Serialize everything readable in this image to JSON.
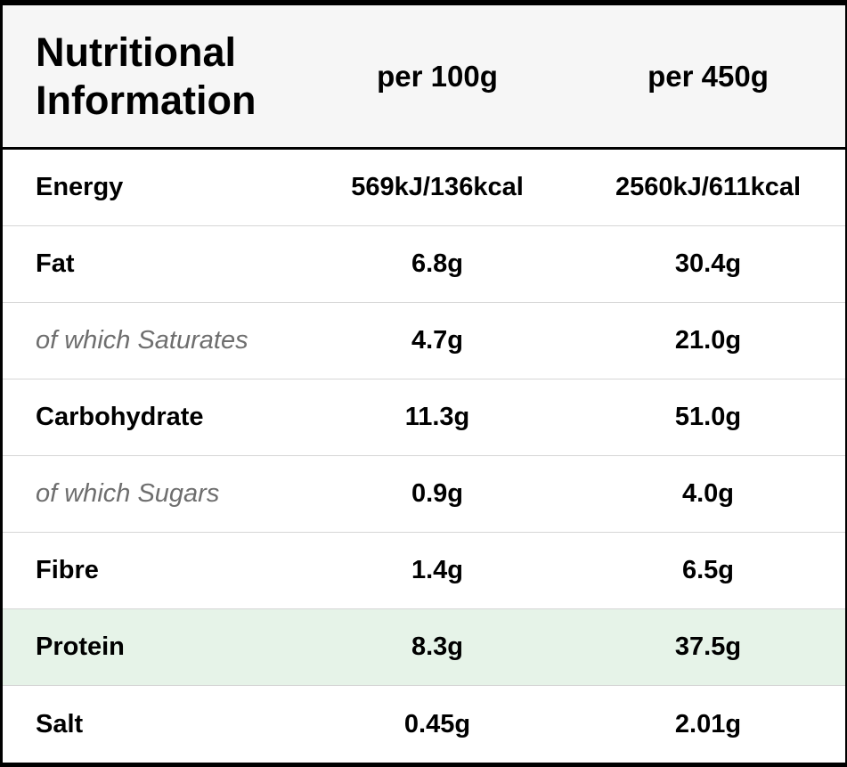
{
  "table": {
    "title_line1": "Nutritional",
    "title_line2": "Information",
    "col_1_header": "per 100g",
    "col_2_header": "per 450g",
    "highlight_color": "#e6f3e8",
    "rows": [
      {
        "label": "Energy",
        "per_100g": "569kJ/136kcal",
        "per_450g": "2560kJ/611kcal",
        "sub": false
      },
      {
        "label": "Fat",
        "per_100g": "6.8g",
        "per_450g": "30.4g",
        "sub": false
      },
      {
        "label": "of which Saturates",
        "per_100g": "4.7g",
        "per_450g": "21.0g",
        "sub": true
      },
      {
        "label": "Carbohydrate",
        "per_100g": "11.3g",
        "per_450g": "51.0g",
        "sub": false
      },
      {
        "label": "of which Sugars",
        "per_100g": "0.9g",
        "per_450g": "4.0g",
        "sub": true
      },
      {
        "label": "Fibre",
        "per_100g": "1.4g",
        "per_450g": "6.5g",
        "sub": false
      },
      {
        "label": "Protein",
        "per_100g": "8.3g",
        "per_450g": "37.5g",
        "sub": false,
        "highlight": true
      },
      {
        "label": "Salt",
        "per_100g": "0.45g",
        "per_450g": "2.01g",
        "sub": false
      }
    ]
  }
}
